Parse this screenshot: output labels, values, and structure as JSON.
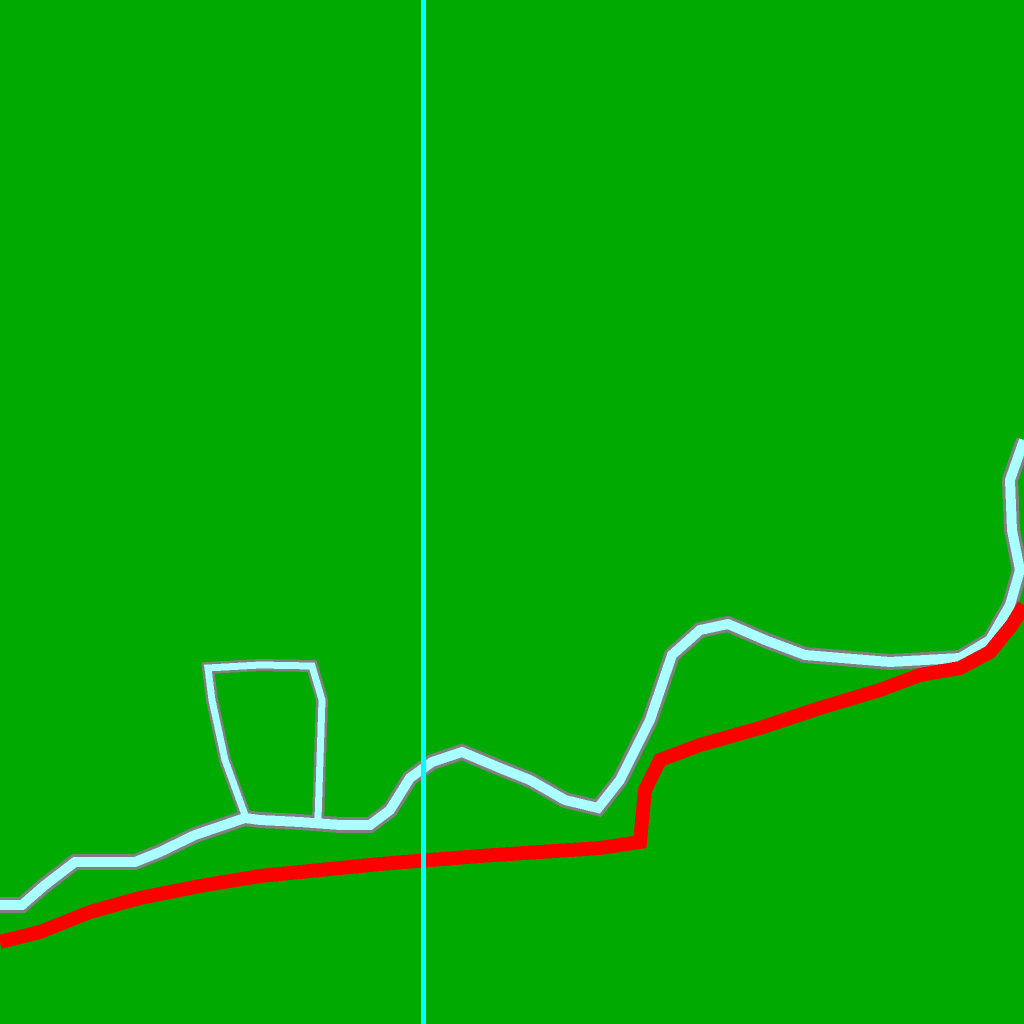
{
  "map": {
    "colors": {
      "background": "#00aa00",
      "river_fill": "#aaffff",
      "river_outline": "#808080",
      "red_route": "#ff0000",
      "vertical_line": "#00ffff"
    }
  }
}
